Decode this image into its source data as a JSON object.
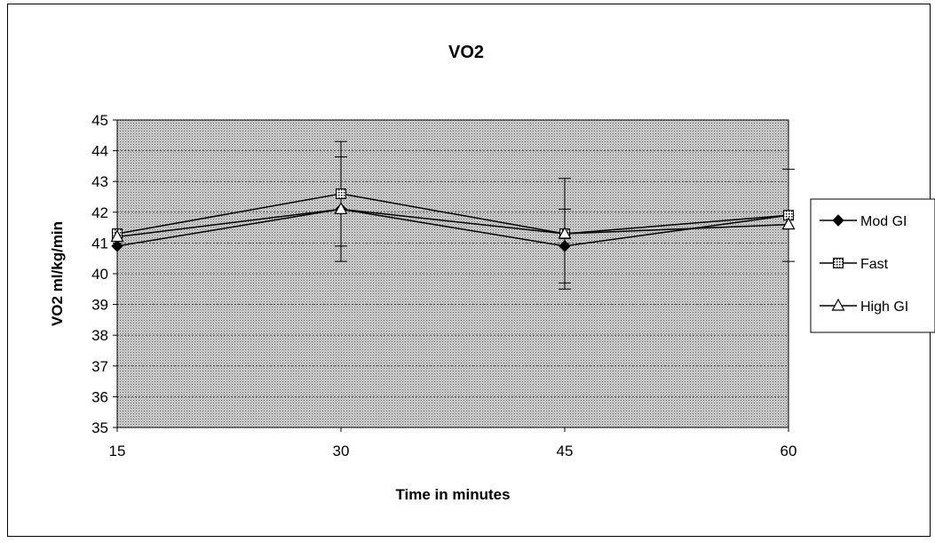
{
  "chart_data": {
    "type": "line",
    "title": "VO2",
    "xlabel": "Time in minutes",
    "ylabel": "VO2 ml/kg/min",
    "x": [
      15,
      30,
      45,
      60
    ],
    "ylim": [
      35,
      45
    ],
    "yticks": [
      35,
      36,
      37,
      38,
      39,
      40,
      41,
      42,
      43,
      44,
      45
    ],
    "grid": true,
    "legend_position": "right",
    "plot_background": "#c8c8c8",
    "series": [
      {
        "name": "Mod GI",
        "marker": "diamond",
        "values": [
          40.9,
          42.1,
          40.9,
          41.9
        ],
        "error": [
          null,
          1.7,
          1.2,
          1.5
        ]
      },
      {
        "name": "Fast",
        "marker": "square-hatched",
        "values": [
          41.3,
          42.6,
          41.3,
          41.9
        ],
        "error": [
          null,
          1.7,
          1.8,
          null
        ]
      },
      {
        "name": "High GI",
        "marker": "triangle",
        "values": [
          41.2,
          42.1,
          41.3,
          41.6
        ],
        "error": [
          null,
          null,
          null,
          null
        ]
      }
    ]
  }
}
